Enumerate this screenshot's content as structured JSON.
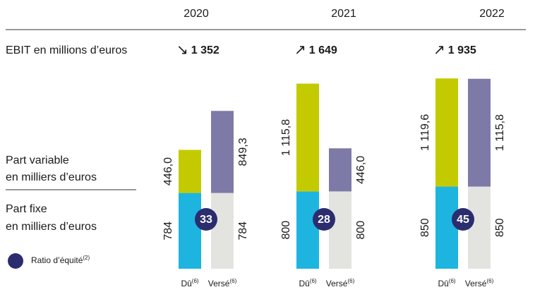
{
  "chart_data": {
    "type": "bar",
    "categories": [
      "2020",
      "2021",
      "2022"
    ],
    "ebit": {
      "label": "EBIT en millions d’euros",
      "values": [
        1352,
        1649,
        1935
      ],
      "value_labels": [
        "1 352",
        "1 649",
        "1 935"
      ],
      "trend": [
        "down",
        "up",
        "up"
      ]
    },
    "groups": [
      {
        "name": "Dû",
        "note": "(6)"
      },
      {
        "name": "Versé",
        "note": "(6)"
      }
    ],
    "parts": [
      {
        "name": "Part fixe",
        "unit": "en milliers d’euros"
      },
      {
        "name": "Part variable",
        "unit": "en milliers d’euros"
      }
    ],
    "series": [
      {
        "group": 0,
        "part": 0,
        "color": "#1db4e0",
        "values": [
          784,
          800,
          850
        ],
        "value_labels": [
          "784",
          "800",
          "850"
        ]
      },
      {
        "group": 0,
        "part": 1,
        "color": "#c3cb00",
        "values": [
          446.0,
          1115.8,
          1119.6
        ],
        "value_labels": [
          "446,0",
          "1 115,8",
          "1 119,6"
        ]
      },
      {
        "group": 1,
        "part": 0,
        "color": "#e3e4df",
        "values": [
          784,
          800,
          850
        ],
        "value_labels": [
          "784",
          "800",
          "850"
        ]
      },
      {
        "group": 1,
        "part": 1,
        "color": "#7e7aa7",
        "values": [
          849.3,
          446.0,
          1115.8
        ],
        "value_labels": [
          "849,3",
          "446,0",
          "1 115,8"
        ]
      }
    ],
    "ratio": {
      "name": "Ratio d’équité",
      "note": "(2)",
      "color": "#2c2d6f",
      "values": [
        33,
        28,
        45
      ]
    },
    "ylim": [
      0,
      2000
    ]
  }
}
